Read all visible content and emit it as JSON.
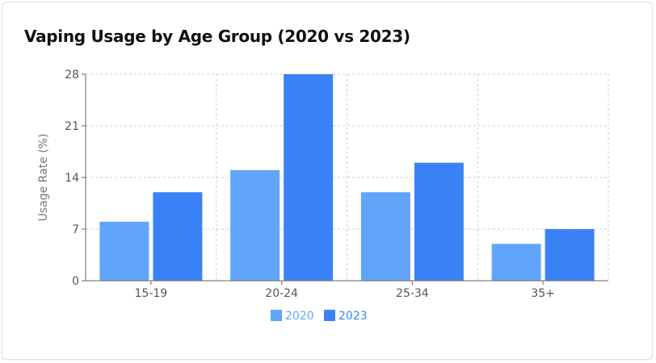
{
  "chart_data": {
    "type": "bar",
    "title": "Vaping Usage by Age Group (2020 vs 2023)",
    "xlabel": "",
    "ylabel": "Usage Rate (%)",
    "categories": [
      "15-19",
      "20-24",
      "25-34",
      "35+"
    ],
    "series": [
      {
        "name": "2020",
        "values": [
          8,
          15,
          12,
          5
        ],
        "color": "#60a5fa"
      },
      {
        "name": "2023",
        "values": [
          12,
          28,
          16,
          7
        ],
        "color": "#3b82f6"
      }
    ],
    "ylim": [
      0,
      28
    ],
    "yticks": [
      "0",
      "7",
      "14",
      "21",
      "28"
    ],
    "grid": true,
    "legend_position": "bottom"
  }
}
